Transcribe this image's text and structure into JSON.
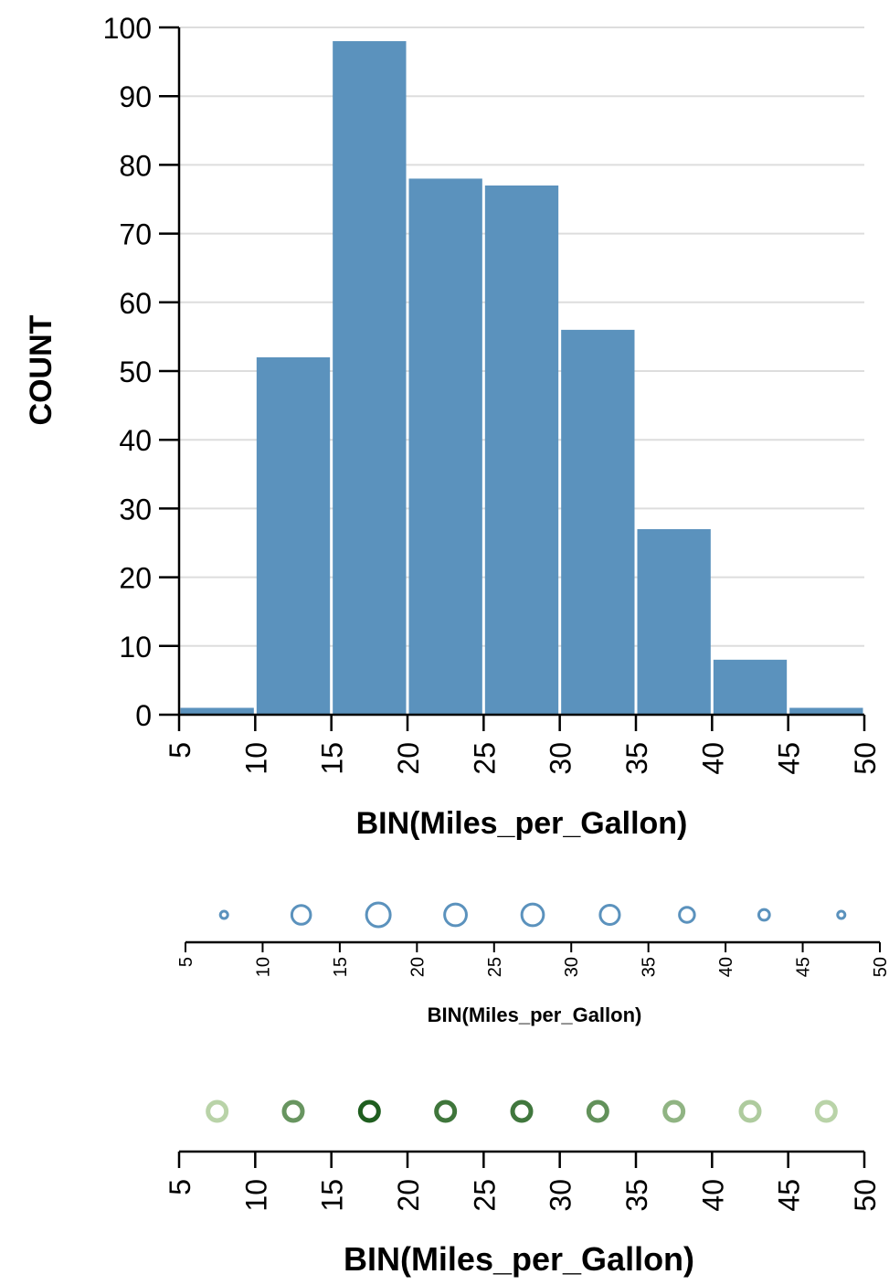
{
  "chart_data": [
    {
      "type": "bar",
      "bin_edges": [
        5,
        10,
        15,
        20,
        25,
        30,
        35,
        40,
        45,
        50
      ],
      "values": [
        1,
        52,
        98,
        78,
        77,
        56,
        27,
        8,
        1
      ],
      "xlabel": "BIN(Miles_per_Gallon)",
      "ylabel": "COUNT",
      "ylim": [
        0,
        100
      ],
      "xlim": [
        5,
        50
      ],
      "yticks": [
        "0",
        "10",
        "20",
        "30",
        "40",
        "50",
        "60",
        "70",
        "80",
        "90",
        "100"
      ],
      "xticks": [
        "5",
        "10",
        "15",
        "20",
        "25",
        "30",
        "35",
        "40",
        "45",
        "50"
      ],
      "grid": true,
      "color": "#5b92bd"
    },
    {
      "type": "scatter",
      "encoding": "size",
      "x": [
        7.5,
        12.5,
        17.5,
        22.5,
        27.5,
        32.5,
        37.5,
        42.5,
        47.5
      ],
      "size_values": [
        1,
        52,
        98,
        78,
        77,
        56,
        27,
        8,
        1
      ],
      "xlabel": "BIN(Miles_per_Gallon)",
      "xlim": [
        5,
        50
      ],
      "xticks": [
        "5",
        "10",
        "15",
        "20",
        "25",
        "30",
        "35",
        "40",
        "45",
        "50"
      ],
      "color": "#5b92bd"
    },
    {
      "type": "scatter",
      "encoding": "color",
      "x": [
        7.5,
        12.5,
        17.5,
        22.5,
        27.5,
        32.5,
        37.5,
        42.5,
        47.5
      ],
      "color_values": [
        1,
        52,
        98,
        78,
        77,
        56,
        27,
        8,
        1
      ],
      "xlabel": "BIN(Miles_per_Gallon)",
      "xlim": [
        5,
        50
      ],
      "xticks": [
        "5",
        "10",
        "15",
        "20",
        "25",
        "30",
        "35",
        "40",
        "45",
        "50"
      ],
      "color_range": [
        "#b9d3a8",
        "#1f5e1f"
      ]
    }
  ]
}
